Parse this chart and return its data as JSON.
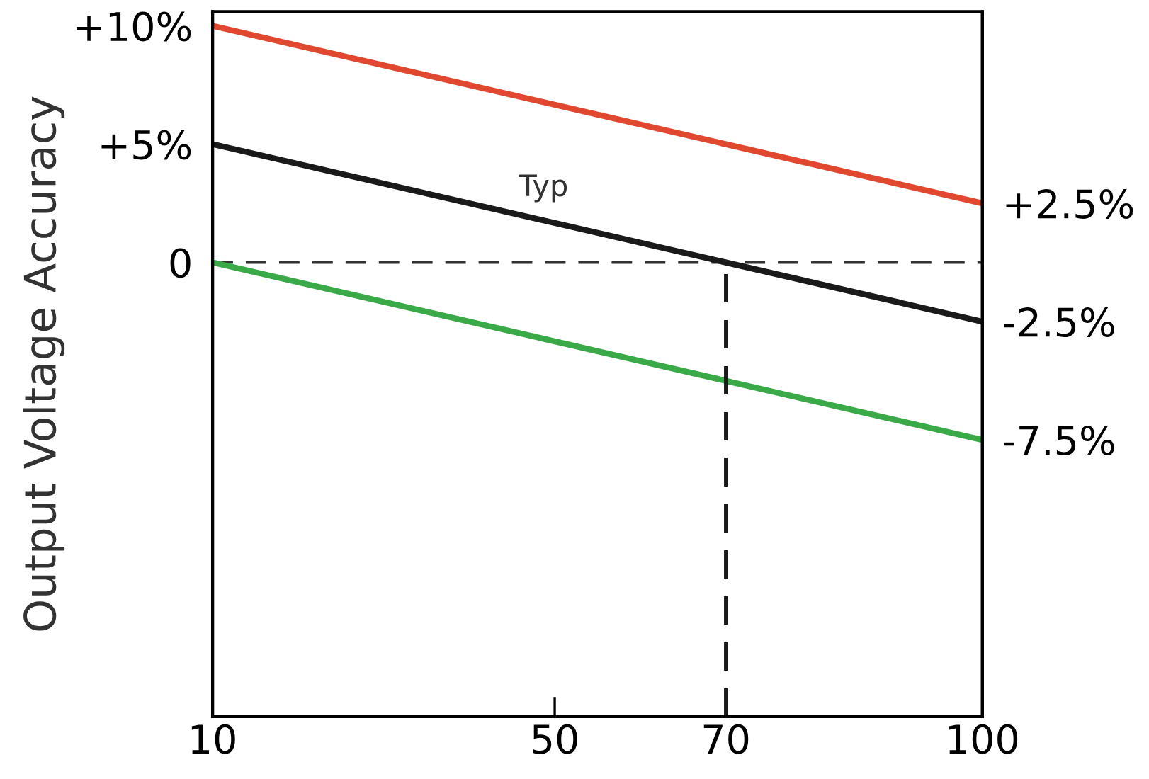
{
  "chart_data": {
    "type": "line",
    "ylabel": "Output Voltage Accuracy",
    "x": [
      10,
      100
    ],
    "series": [
      {
        "color": "#e0482f",
        "values": [
          10,
          2.5
        ]
      },
      {
        "color": "#1a1a1a",
        "values": [
          5,
          -2.5
        ]
      },
      {
        "color": "#3aaa48",
        "values": [
          0,
          -7.5
        ]
      },
      {
        "color": "#1a1a1a",
        "x": [
          70,
          70
        ],
        "values": [
          -19.2,
          0
        ],
        "line_style": "dashed"
      }
    ],
    "xlim": [
      10,
      100
    ],
    "xticks": [
      10,
      50,
      70,
      100
    ],
    "ylim": [
      -19.2,
      10.6
    ],
    "yticks": [
      {
        "value": 10,
        "label": "+10%"
      },
      {
        "value": 5,
        "label": "+5%"
      },
      0
    ],
    "y2lim": [
      -19.2,
      10.6
    ],
    "y2ticks": [
      {
        "value": 2.5,
        "label": "+2.5%"
      },
      {
        "value": -2.5,
        "label": "-2.5%"
      },
      {
        "value": -7.5,
        "label": "-7.5%"
      }
    ],
    "ref_lines": [
      {
        "axis": "y",
        "value": 0,
        "color": "#333333",
        "line_style": "dashed"
      }
    ],
    "annotations": [
      "Typ"
    ],
    "grid": false,
    "legend": false,
    "marker": "none"
  }
}
